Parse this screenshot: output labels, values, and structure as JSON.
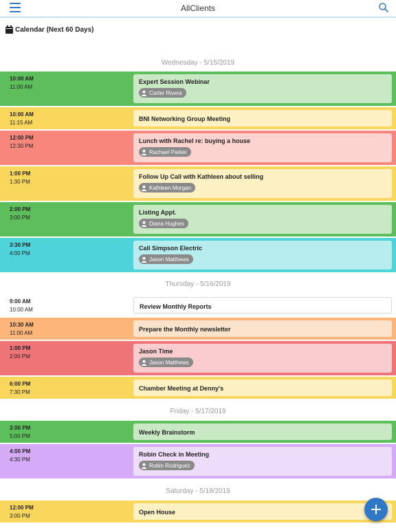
{
  "header": {
    "app_title": "AllClients",
    "menu_icon": "hamburger-icon",
    "search_icon": "search-icon",
    "accent": "#2e78c5"
  },
  "section": {
    "title": "Calendar (Next 60 Days)",
    "icon": "calendar-icon"
  },
  "days": [
    {
      "label": "Wednesday - 5/15/2019",
      "events": [
        {
          "start": "10:00 AM",
          "end": "11:00 AM",
          "title": "Expert Session Webinar",
          "contact": "Carter Rivera",
          "color": "#5cbf5c",
          "card": "#c9e8c4"
        },
        {
          "start": "10:00 AM",
          "end": "11:15 AM",
          "title": "BNI Networking Group Meeting",
          "contact": "",
          "color": "#f9d65c",
          "card": "#fdf0c2"
        },
        {
          "start": "12:00 PM",
          "end": "12:30 PM",
          "title": "Lunch with Rachel re: buying a house",
          "contact": "Rachael Parker",
          "color": "#f7877d",
          "card": "#fdd3cf"
        },
        {
          "start": "1:00 PM",
          "end": "1:30 PM",
          "title": "Follow Up Call with Kathleen about selling",
          "contact": "Kathleen Morgan",
          "color": "#f9d65c",
          "card": "#fdf0c2"
        },
        {
          "start": "2:00 PM",
          "end": "3:00 PM",
          "title": "Listing Appt.",
          "contact": "Diana Hughes",
          "color": "#5cbf5c",
          "card": "#c9e8c4"
        },
        {
          "start": "3:30 PM",
          "end": "4:00 PM",
          "title": "Call Simpson Electric",
          "contact": "Jason Matthews",
          "color": "#4dd3d9",
          "card": "#b8edf0"
        }
      ]
    },
    {
      "label": "Thursday - 5/16/2019",
      "events": [
        {
          "start": "9:00 AM",
          "end": "10:00 AM",
          "title": "Review Monthly Reports",
          "contact": "",
          "color": "#ffffff",
          "card": "#ffffff"
        },
        {
          "start": "10:30 AM",
          "end": "11:00 AM",
          "title": "Prepare the Monthly newsletter",
          "contact": "",
          "color": "#fdb57a",
          "card": "#fde3cc"
        },
        {
          "start": "1:00 PM",
          "end": "2:00 PM",
          "title": "Jason Time",
          "contact": "Jason Matthews",
          "color": "#ee7478",
          "card": "#f9cdd0"
        },
        {
          "start": "6:00 PM",
          "end": "7:30 PM",
          "title": "Chamber Meeting at Denny's",
          "contact": "",
          "color": "#f9d65c",
          "card": "#fdf0c2"
        }
      ]
    },
    {
      "label": "Friday - 5/17/2019",
      "events": [
        {
          "start": "3:00 PM",
          "end": "5:00 PM",
          "title": "Weekly Brainstorm",
          "contact": "",
          "color": "#5cbf5c",
          "card": "#c9e8c4"
        },
        {
          "start": "4:00 PM",
          "end": "4:30 PM",
          "title": "Robin Check in Meeting",
          "contact": "Robin Rodriguez",
          "color": "#d5aaf7",
          "card": "#eedcfb"
        }
      ]
    },
    {
      "label": "Saturday - 5/18/2019",
      "events": [
        {
          "start": "12:00 PM",
          "end": "3:00 PM",
          "title": "Open House",
          "contact": "",
          "color": "#f9d65c",
          "card": "#fdf0c2"
        }
      ]
    }
  ],
  "fab": {
    "icon": "plus-icon"
  }
}
